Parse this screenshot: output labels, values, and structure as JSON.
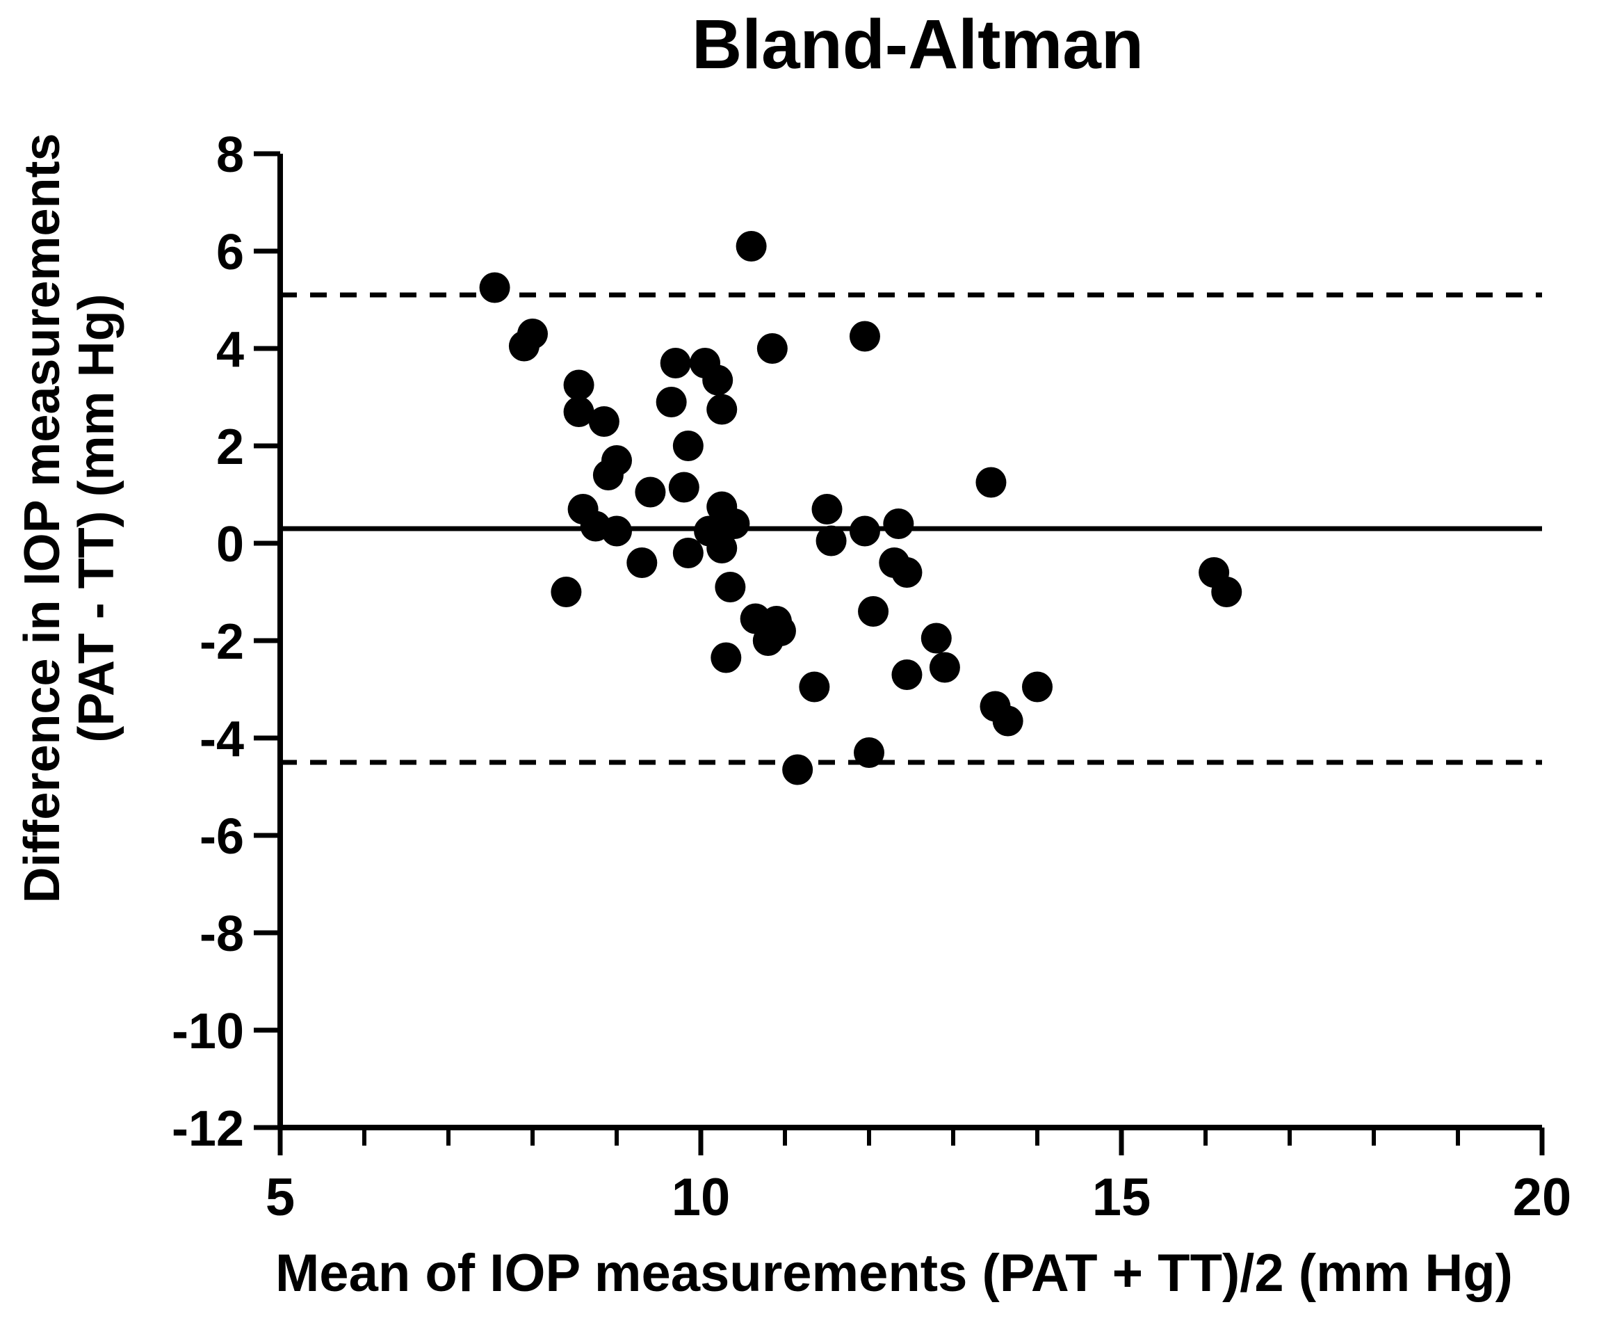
{
  "title": "Bland-Altman",
  "colors": {
    "foreground": "#000000",
    "background": "#ffffff"
  },
  "chart_data": {
    "type": "scatter",
    "title": "Bland-Altman",
    "xlabel": "Mean of IOP measurements (PAT + TT)/2 (mm Hg)",
    "ylabel_lines": [
      "Difference in IOP measurements",
      "(PAT - TT) (mm Hg)"
    ],
    "xlim": [
      5,
      20
    ],
    "ylim": [
      -12,
      8
    ],
    "x_ticks": [
      5,
      10,
      15,
      20
    ],
    "x_minor_tick_step": 1,
    "y_ticks": [
      8,
      6,
      4,
      2,
      0,
      -2,
      -4,
      -6,
      -8,
      -10,
      -12
    ],
    "grid": false,
    "legend": null,
    "marker": {
      "shape": "circle",
      "color": "#000000",
      "radius_px": 22
    },
    "reference_lines": {
      "mean": 0.3,
      "upper_loa": 5.1,
      "lower_loa": -4.5,
      "mean_style": "solid",
      "loa_style": "dashed"
    },
    "points": [
      [
        7.55,
        5.25
      ],
      [
        7.9,
        4.05
      ],
      [
        8.0,
        4.3
      ],
      [
        8.4,
        -1.0
      ],
      [
        8.55,
        3.25
      ],
      [
        8.55,
        2.7
      ],
      [
        8.6,
        0.7
      ],
      [
        8.75,
        0.35
      ],
      [
        8.85,
        2.5
      ],
      [
        8.9,
        1.4
      ],
      [
        9.0,
        1.7
      ],
      [
        9.0,
        0.25
      ],
      [
        9.3,
        -0.4
      ],
      [
        9.4,
        1.05
      ],
      [
        9.65,
        2.9
      ],
      [
        9.7,
        3.7
      ],
      [
        9.8,
        1.15
      ],
      [
        9.85,
        2.0
      ],
      [
        9.85,
        -0.2
      ],
      [
        10.05,
        3.7
      ],
      [
        10.1,
        0.25
      ],
      [
        10.2,
        3.35
      ],
      [
        10.25,
        2.75
      ],
      [
        10.25,
        0.75
      ],
      [
        10.25,
        -0.1
      ],
      [
        10.3,
        -2.35
      ],
      [
        10.35,
        -0.9
      ],
      [
        10.4,
        0.4
      ],
      [
        10.6,
        6.1
      ],
      [
        10.65,
        -1.55
      ],
      [
        10.8,
        -2.0
      ],
      [
        10.85,
        4.0
      ],
      [
        10.9,
        -1.6
      ],
      [
        10.95,
        -1.8
      ],
      [
        11.15,
        -4.65
      ],
      [
        11.35,
        -2.95
      ],
      [
        11.5,
        0.7
      ],
      [
        11.55,
        0.05
      ],
      [
        11.95,
        4.25
      ],
      [
        11.95,
        0.25
      ],
      [
        12.0,
        -4.3
      ],
      [
        12.05,
        -1.4
      ],
      [
        12.3,
        -0.4
      ],
      [
        12.35,
        0.4
      ],
      [
        12.45,
        -0.6
      ],
      [
        12.45,
        -2.7
      ],
      [
        12.8,
        -1.95
      ],
      [
        12.9,
        -2.55
      ],
      [
        13.45,
        1.25
      ],
      [
        13.5,
        -3.35
      ],
      [
        13.65,
        -3.65
      ],
      [
        14.0,
        -2.95
      ],
      [
        16.1,
        -0.6
      ],
      [
        16.25,
        -1.0
      ]
    ]
  }
}
